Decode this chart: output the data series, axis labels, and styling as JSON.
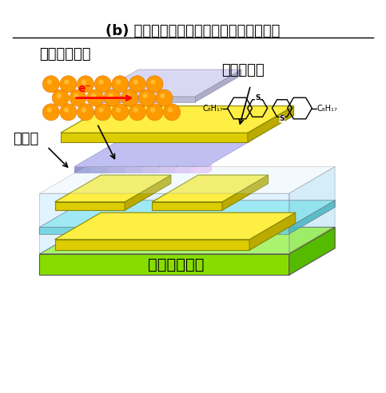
{
  "title": "(b) 室温印刷で作製した有機トランジスタ",
  "label_electrode": "常温塗布電極",
  "label_insulator": "絶縁層",
  "label_semiconductor": "有機半導体",
  "label_substrate": "非耐熱性基板",
  "label_electron": "e⁻",
  "chem_formula_left": "C₈H₁₇",
  "chem_formula_right": "C₈H₁₇",
  "bg_color": "#ffffff",
  "title_fontsize": 13,
  "label_fontsize": 13,
  "substrate_color_top": "#00e5ff",
  "substrate_color_bottom": "#66ff00",
  "box_edge_color": "#888888",
  "yellow_color": "#ffee00",
  "purple_color": "#9999dd",
  "nanoparticle_color": "#ff9900"
}
